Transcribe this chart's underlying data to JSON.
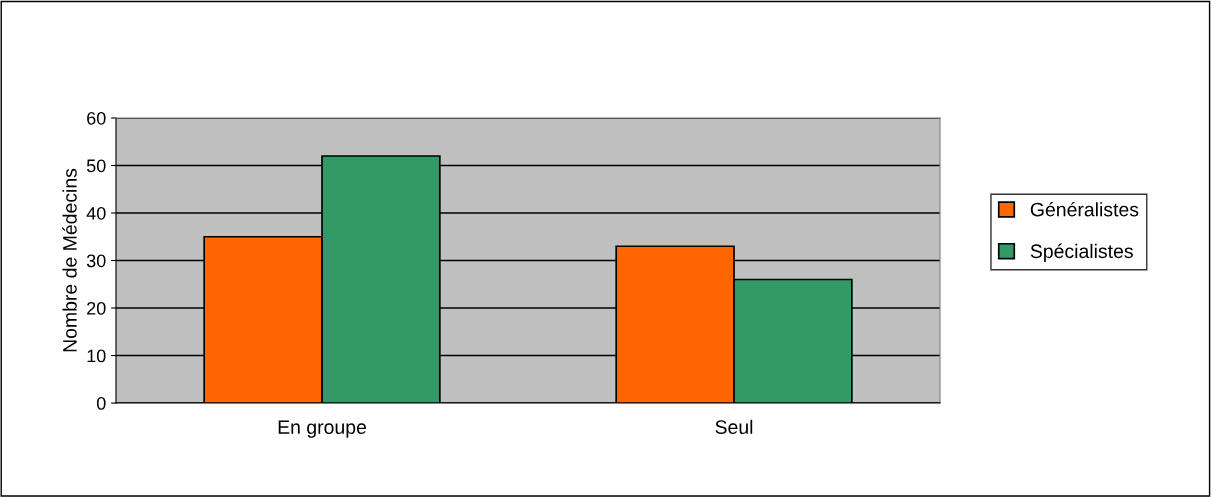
{
  "chart_data": {
    "type": "bar",
    "ylabel": "Nombre de Médecins",
    "categories": [
      "En groupe",
      "Seul"
    ],
    "series": [
      {
        "name": "Généralistes",
        "color": "#ff6600",
        "values": [
          35,
          33
        ]
      },
      {
        "name": "Spécialistes",
        "color": "#339966",
        "values": [
          52,
          26
        ]
      }
    ],
    "ylim": [
      0,
      60
    ],
    "yticks": [
      0,
      10,
      20,
      30,
      40,
      50,
      60
    ],
    "grid": "y",
    "legend": "right"
  }
}
